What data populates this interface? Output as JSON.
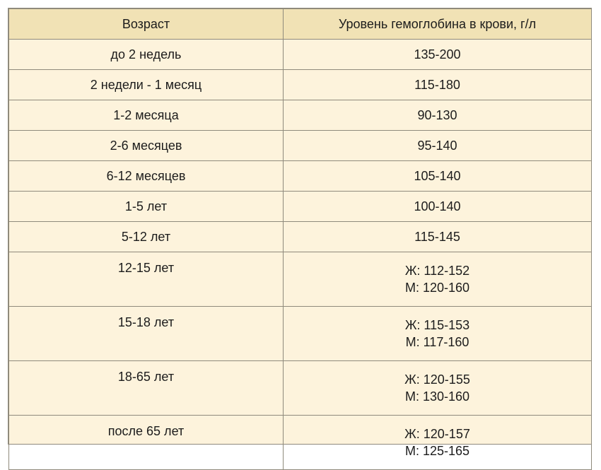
{
  "table": {
    "headers": {
      "age": "Возраст",
      "level": "Уровень гемоглобина в крови, г/л"
    },
    "rows": [
      {
        "age": "до 2 недель",
        "level": [
          "135-200"
        ]
      },
      {
        "age": "2 недели - 1 месяц",
        "level": [
          "115-180"
        ]
      },
      {
        "age": "1-2 месяца",
        "level": [
          "90-130"
        ]
      },
      {
        "age": "2-6 месяцев",
        "level": [
          "95-140"
        ]
      },
      {
        "age": "6-12 месяцев",
        "level": [
          "105-140"
        ]
      },
      {
        "age": "1-5 лет",
        "level": [
          "100-140"
        ]
      },
      {
        "age": "5-12 лет",
        "level": [
          "115-145"
        ]
      },
      {
        "age": "12-15 лет",
        "level": [
          "Ж: 112-152",
          "М: 120-160"
        ]
      },
      {
        "age": "15-18 лет",
        "level": [
          "Ж: 115-153",
          "М: 117-160"
        ]
      },
      {
        "age": "18-65 лет",
        "level": [
          "Ж: 120-155",
          "М: 130-160"
        ]
      },
      {
        "age": "после 65 лет",
        "level": [
          "Ж: 120-157",
          "М: 125-165"
        ]
      }
    ]
  },
  "colors": {
    "header_background": "#f1e2b5",
    "cell_background": "#fdf3dc",
    "border": "#8f8a7c",
    "text": "#1c1c1c"
  }
}
